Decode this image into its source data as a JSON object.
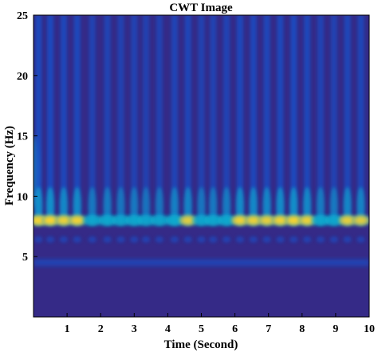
{
  "chart_data": {
    "type": "heatmap",
    "title": "CWT Image",
    "xlabel": "Time (Second)",
    "ylabel": "Frequency (Hz)",
    "xlim": [
      0,
      10
    ],
    "ylim": [
      0,
      25
    ],
    "x_ticks": [
      "1",
      "2",
      "3",
      "4",
      "5",
      "6",
      "7",
      "8",
      "9",
      "10"
    ],
    "y_ticks": [
      "5",
      "10",
      "15",
      "20",
      "25"
    ],
    "colormap": "parula",
    "colors": {
      "background": "#352a87",
      "low": "#0f5cdd",
      "mid": "#0fafd0",
      "high": "#a5be6a",
      "peak": "#fcd52e"
    },
    "dominant_band_hz": 8,
    "secondary_band_hz": 4.5,
    "pulse_times": [
      0.15,
      0.5,
      0.9,
      1.3,
      1.75,
      2.2,
      2.6,
      3.0,
      3.35,
      3.75,
      4.2,
      4.6,
      5.0,
      5.35,
      5.75,
      6.15,
      6.55,
      6.95,
      7.35,
      7.75,
      8.15,
      8.55,
      8.95,
      9.35,
      9.75
    ],
    "band_intensity": [
      0.95,
      1.0,
      0.85,
      0.9,
      0.55,
      0.6,
      0.5,
      0.55,
      0.45,
      0.5,
      0.7,
      0.75,
      0.5,
      0.55,
      0.6,
      0.9,
      0.85,
      0.8,
      0.9,
      0.95,
      0.85,
      0.6,
      0.55,
      0.8,
      0.75
    ],
    "edge_hotspot": {
      "time": 0.0,
      "freq_range": [
        9,
        15
      ],
      "intensity": 0.45
    }
  }
}
